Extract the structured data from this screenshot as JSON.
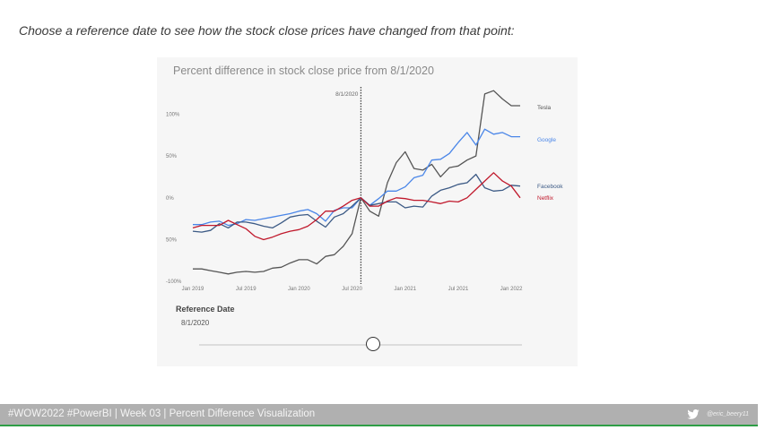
{
  "instruction": "Choose a reference date to see how the stock close prices have changed from that point:",
  "chart_title": "Percent difference in stock close price from 8/1/2020",
  "reference_label": "Reference Date",
  "reference_value": "8/1/2020",
  "footer": {
    "text": "#WOW2022 #PowerBI | Week 03 | Percent Difference Visualization",
    "handle": "@eric_beery11",
    "icon": "twitter-icon"
  },
  "chart_data": {
    "type": "line",
    "title": "Percent difference in stock close price from 8/1/2020",
    "xlabel": "",
    "ylabel": "",
    "x_axis": "months from Jan 2019 to Feb 2022",
    "x_ticks": [
      "Jan 2019",
      "Jul 2019",
      "Jan 2020",
      "Jul 2020",
      "Jan 2021",
      "Jul 2021",
      "Jan 2022"
    ],
    "y_ticks": [
      "100%",
      "50%",
      "0%",
      "50%",
      "-100%"
    ],
    "y_tick_values": [
      100,
      50,
      0,
      -50,
      -100
    ],
    "ylim": [
      -100,
      130
    ],
    "reference_line": {
      "date": "2020-08-01",
      "label": "8/1/2020"
    },
    "grid": false,
    "legend": "labels at line ends",
    "x": [
      "2019-01",
      "2019-02",
      "2019-03",
      "2019-04",
      "2019-05",
      "2019-06",
      "2019-07",
      "2019-08",
      "2019-09",
      "2019-10",
      "2019-11",
      "2019-12",
      "2020-01",
      "2020-02",
      "2020-03",
      "2020-04",
      "2020-05",
      "2020-06",
      "2020-07",
      "2020-08",
      "2020-09",
      "2020-10",
      "2020-11",
      "2020-12",
      "2021-01",
      "2021-02",
      "2021-03",
      "2021-04",
      "2021-05",
      "2021-06",
      "2021-07",
      "2021-08",
      "2021-09",
      "2021-10",
      "2021-11",
      "2021-12",
      "2022-01",
      "2022-02"
    ],
    "series": [
      {
        "name": "Tesla",
        "color": "#555555",
        "values": [
          -85,
          -85,
          -87,
          -89,
          -91,
          -89,
          -88,
          -89,
          -88,
          -84,
          -83,
          -78,
          -74,
          -74,
          -79,
          -70,
          -68,
          -58,
          -43,
          0,
          -16,
          -22,
          18,
          42,
          55,
          35,
          33,
          40,
          25,
          36,
          38,
          45,
          50,
          124,
          128,
          118,
          110,
          110
        ]
      },
      {
        "name": "Google",
        "color": "#4a86e8",
        "values": [
          -32,
          -32,
          -29,
          -28,
          -33,
          -31,
          -26,
          -27,
          -25,
          -23,
          -21,
          -19,
          -16,
          -14,
          -19,
          -28,
          -15,
          -12,
          -12,
          0,
          -9,
          -1,
          8,
          8,
          13,
          24,
          27,
          45,
          46,
          53,
          66,
          78,
          63,
          82,
          76,
          78,
          73,
          73
        ]
      },
      {
        "name": "Facebook",
        "color": "#3c5a85",
        "values": [
          -40,
          -41,
          -39,
          -31,
          -36,
          -29,
          -29,
          -31,
          -34,
          -36,
          -30,
          -23,
          -21,
          -20,
          -28,
          -35,
          -23,
          -19,
          -10,
          0,
          -9,
          -7,
          -5,
          -5,
          -12,
          -10,
          -11,
          2,
          9,
          12,
          16,
          18,
          28,
          12,
          8,
          9,
          15,
          14
        ]
      },
      {
        "name": "Netflix",
        "color": "#c0192c",
        "values": [
          -36,
          -33,
          -33,
          -33,
          -27,
          -32,
          -37,
          -46,
          -50,
          -47,
          -43,
          -40,
          -38,
          -34,
          -26,
          -16,
          -16,
          -10,
          -3,
          0,
          -10,
          -10,
          -4,
          0,
          -1,
          -3,
          -3,
          -5,
          -7,
          -4,
          -5,
          0,
          10,
          20,
          30,
          20,
          14,
          0
        ]
      }
    ]
  }
}
